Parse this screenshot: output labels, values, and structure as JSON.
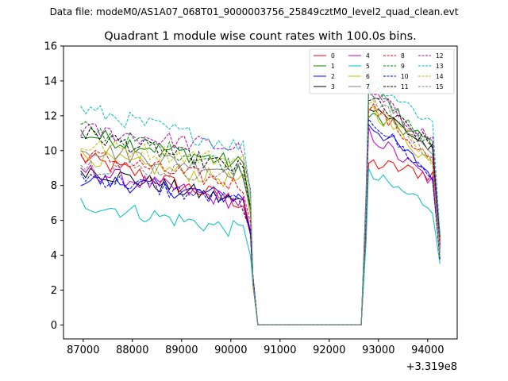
{
  "chart_data": {
    "type": "line",
    "suptitle": "Data file: modeM0/AS1A07_068T01_9000003756_25849cztM0_level2_quad_clean.evt",
    "title": "Quadrant 1 module wise count rates with 100.0s bins.",
    "xlabel": "",
    "ylabel": "",
    "x_offset_label": "+3.319e8",
    "xlim": [
      86600,
      94600
    ],
    "ylim": [
      -0.8,
      16
    ],
    "x_ticks": [
      87000,
      88000,
      89000,
      90000,
      91000,
      92000,
      93000,
      94000
    ],
    "y_ticks": [
      0,
      2,
      4,
      6,
      8,
      10,
      12,
      14,
      16
    ],
    "x_tick_labels": [
      "87000",
      "88000",
      "89000",
      "90000",
      "91000",
      "92000",
      "93000",
      "94000"
    ],
    "y_tick_labels": [
      "0",
      "2",
      "4",
      "6",
      "8",
      "10",
      "12",
      "14",
      "16"
    ],
    "legend_position": "top-right",
    "series": [
      {
        "name": "0",
        "color": "#ff0000",
        "style": "solid",
        "levels": [
          9.6,
          7.0,
          9.3,
          8.6
        ]
      },
      {
        "name": "1",
        "color": "#008000",
        "style": "solid",
        "levels": [
          11.0,
          9.2,
          12.0,
          10.5
        ]
      },
      {
        "name": "2",
        "color": "#0000ff",
        "style": "solid",
        "levels": [
          8.4,
          7.3,
          11.6,
          8.6
        ]
      },
      {
        "name": "3",
        "color": "#000000",
        "style": "solid",
        "levels": [
          9.0,
          7.0,
          12.8,
          10.0
        ]
      },
      {
        "name": "4",
        "color": "#bf00bf",
        "style": "solid",
        "levels": [
          8.9,
          7.0,
          11.0,
          8.2
        ]
      },
      {
        "name": "5",
        "color": "#00bfbf",
        "style": "solid",
        "levels": [
          7.0,
          5.4,
          8.6,
          6.8
        ]
      },
      {
        "name": "6",
        "color": "#bfbf00",
        "style": "solid",
        "levels": [
          9.7,
          8.2,
          12.6,
          9.2
        ]
      },
      {
        "name": "7",
        "color": "#808080",
        "style": "solid",
        "levels": [
          10.2,
          8.8,
          13.8,
          9.8
        ]
      },
      {
        "name": "8",
        "color": "#ff0000",
        "style": "dashed",
        "levels": [
          9.8,
          8.0,
          12.7,
          9.4
        ]
      },
      {
        "name": "9",
        "color": "#008000",
        "style": "dashed",
        "levels": [
          11.3,
          9.0,
          13.7,
          10.2
        ]
      },
      {
        "name": "10",
        "color": "#0000ff",
        "style": "dashed",
        "levels": [
          8.6,
          7.0,
          12.0,
          8.4
        ]
      },
      {
        "name": "11",
        "color": "#000000",
        "style": "dashed",
        "levels": [
          11.0,
          8.9,
          13.0,
          10.2
        ]
      },
      {
        "name": "12",
        "color": "#bf00bf",
        "style": "dashed",
        "levels": [
          11.2,
          10.1,
          13.4,
          10.6
        ]
      },
      {
        "name": "13",
        "color": "#00bfbf",
        "style": "dashed",
        "levels": [
          12.4,
          10.2,
          14.2,
          11.6
        ]
      },
      {
        "name": "14",
        "color": "#bfbf00",
        "style": "dashed",
        "levels": [
          10.3,
          9.4,
          12.8,
          9.6
        ]
      },
      {
        "name": "15",
        "color": "#808080",
        "style": "dashed",
        "levels": [
          9.2,
          8.6,
          13.4,
          9.4
        ]
      }
    ],
    "notes": "levels = approximate [start of first segment, end of first segment (~90300), peak after gap (~92800), end value (~94150)]; zero from ~90500 to ~92650."
  }
}
